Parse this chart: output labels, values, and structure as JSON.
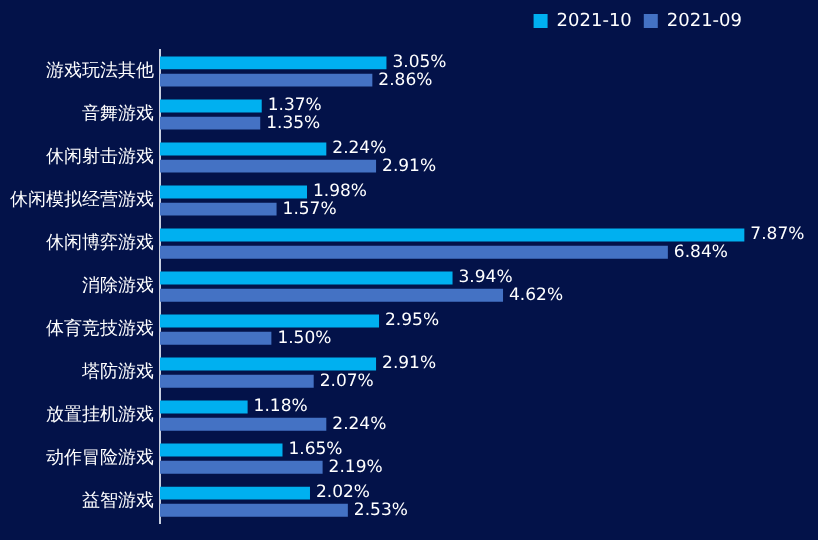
{
  "chart_data": {
    "type": "bar",
    "orientation": "horizontal",
    "tick_labels": "y",
    "legend": "top right",
    "categories": [
      "游戏玩法其他",
      "音舞游戏",
      "休闲射击游戏",
      "休闲模拟经营游戏",
      "休闲博弈游戏",
      "消除游戏",
      "体育竞技游戏",
      "塔防游戏",
      "放置挂机游戏",
      "动作冒险游戏",
      "益智游戏"
    ],
    "series": [
      {
        "name": "2021-10",
        "color": "#00b0f0",
        "values": [
          3.05,
          1.37,
          2.24,
          1.98,
          7.87,
          3.94,
          2.95,
          2.91,
          1.18,
          1.65,
          2.02
        ],
        "value_labels": [
          "3.05%",
          "1.37%",
          "2.24%",
          "1.98%",
          "7.87%",
          "3.94%",
          "2.95%",
          "2.91%",
          "1.18%",
          "1.65%",
          "2.02%"
        ]
      },
      {
        "name": "2021-09",
        "color": "#4472c4",
        "values": [
          2.86,
          1.35,
          2.91,
          1.57,
          6.84,
          4.62,
          1.5,
          2.07,
          2.24,
          2.19,
          2.53
        ],
        "value_labels": [
          "2.86%",
          "1.35%",
          "2.91%",
          "1.57%",
          "6.84%",
          "4.62%",
          "1.50%",
          "2.07%",
          "2.24%",
          "2.19%",
          "2.53%"
        ]
      }
    ]
  }
}
